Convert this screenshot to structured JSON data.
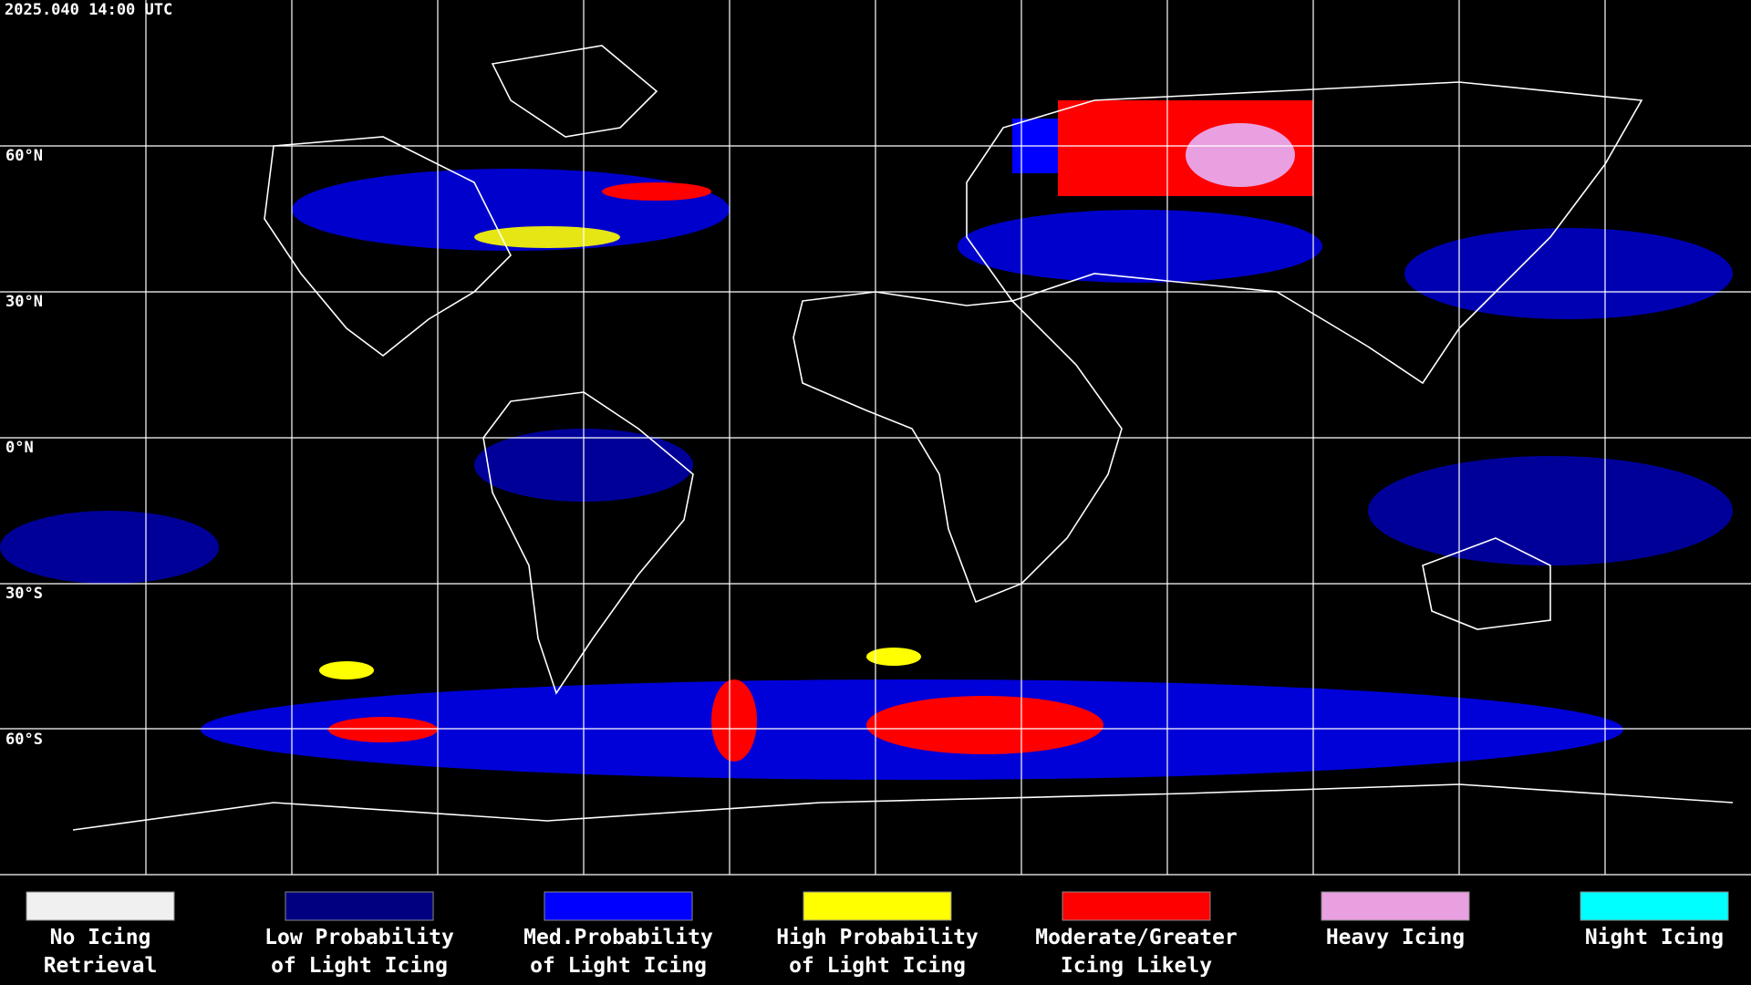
{
  "header": {
    "timestamp": "2025.040 14:00 UTC"
  },
  "map": {
    "lat_labels": [
      "60°N",
      "30°N",
      "0°N",
      "30°S",
      "60°S"
    ]
  },
  "legend": {
    "items": [
      {
        "color": "#f0f0f0",
        "label": [
          "No Icing",
          "Retrieval"
        ]
      },
      {
        "color": "#000080",
        "label": [
          "Low Probability",
          "of Light Icing"
        ]
      },
      {
        "color": "#0000ff",
        "label": [
          "Med.Probability",
          "of Light Icing"
        ]
      },
      {
        "color": "#ffff00",
        "label": [
          "High Probability",
          "of Light Icing"
        ]
      },
      {
        "color": "#ff0000",
        "label": [
          "Moderate/Greater",
          "Icing Likely"
        ]
      },
      {
        "color": "#e8a0e0",
        "label": [
          "Heavy Icing"
        ]
      },
      {
        "color": "#00ffff",
        "label": [
          "Night Icing"
        ]
      }
    ]
  }
}
